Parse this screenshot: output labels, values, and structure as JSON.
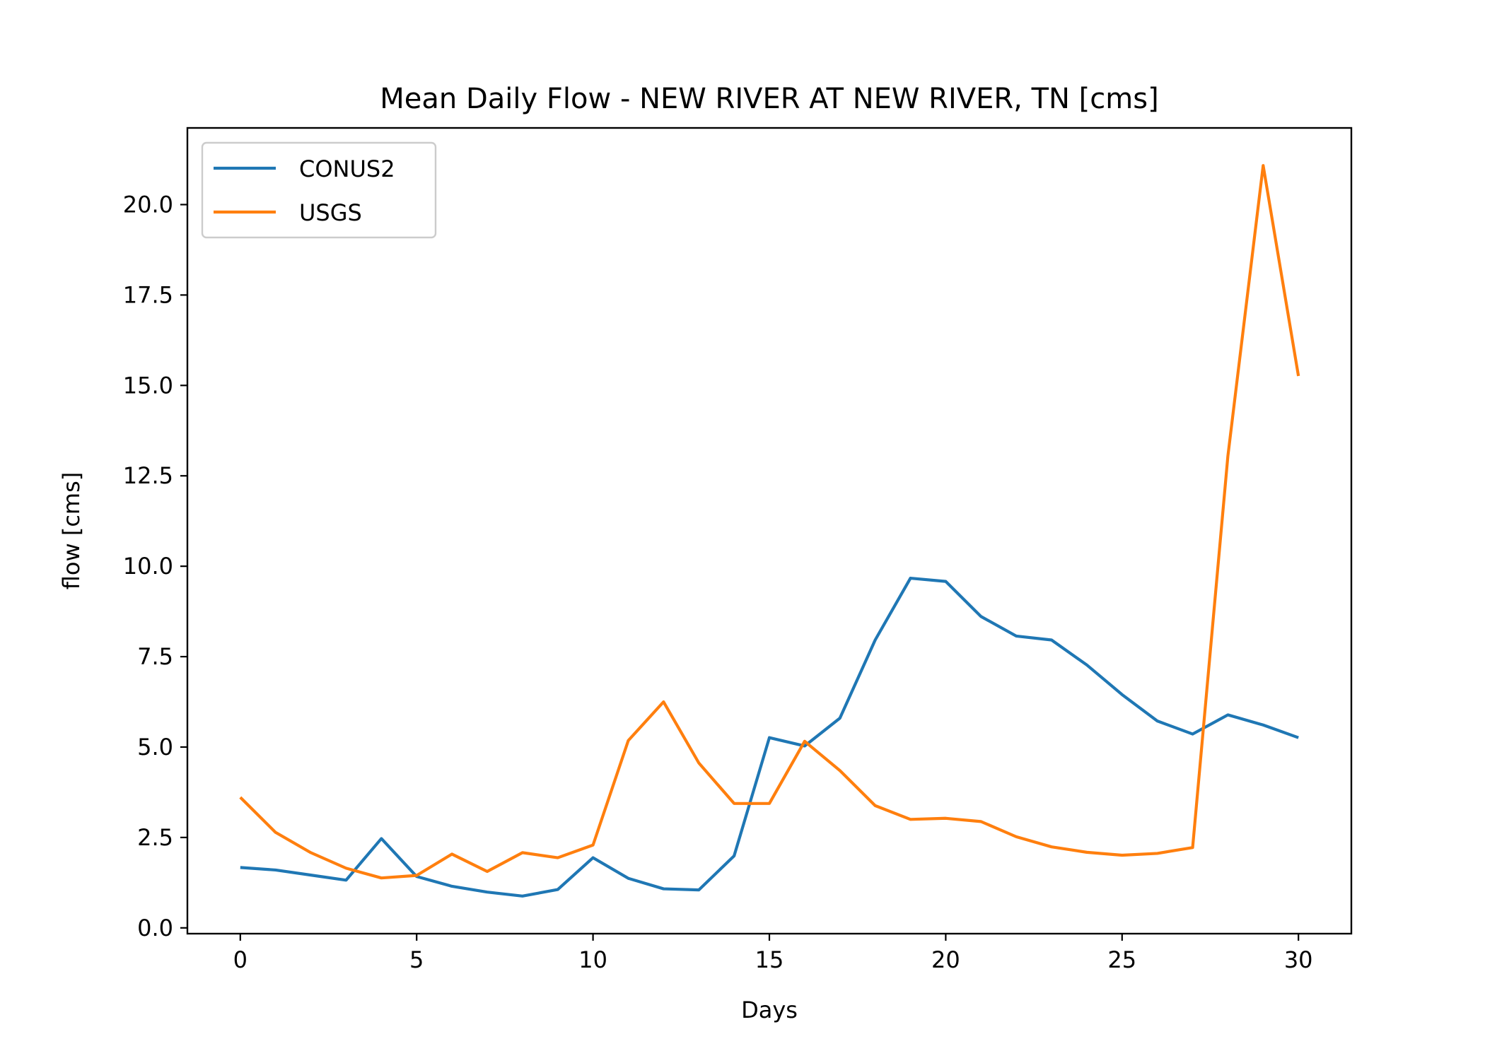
{
  "chart_data": {
    "type": "line",
    "title": "Mean Daily Flow - NEW RIVER AT NEW RIVER, TN [cms]",
    "xlabel": "Days",
    "ylabel": "flow [cms]",
    "xlim": [
      -1.5,
      31.5
    ],
    "ylim": [
      -0.16,
      22.12
    ],
    "xticks": [
      0,
      5,
      10,
      15,
      20,
      25,
      30
    ],
    "yticks": [
      0.0,
      2.5,
      5.0,
      7.5,
      10.0,
      12.5,
      15.0,
      17.5,
      20.0
    ],
    "xtick_labels": [
      "0",
      "5",
      "10",
      "15",
      "20",
      "25",
      "30"
    ],
    "ytick_labels": [
      "0.0",
      "2.5",
      "5.0",
      "7.5",
      "10.0",
      "12.5",
      "15.0",
      "17.5",
      "20.0"
    ],
    "grid": false,
    "legend_position": "upper-left",
    "x": [
      0,
      1,
      2,
      3,
      4,
      5,
      6,
      7,
      8,
      9,
      10,
      11,
      12,
      13,
      14,
      15,
      16,
      17,
      18,
      19,
      20,
      21,
      22,
      23,
      24,
      25,
      26,
      27,
      28,
      29,
      30
    ],
    "series": [
      {
        "name": "CONUS2",
        "color": "#1f77b4",
        "values": [
          1.67,
          1.6,
          1.46,
          1.32,
          2.47,
          1.42,
          1.15,
          0.99,
          0.88,
          1.06,
          1.94,
          1.37,
          1.08,
          1.05,
          1.99,
          5.26,
          5.03,
          5.8,
          7.96,
          9.67,
          9.58,
          8.61,
          8.07,
          7.96,
          7.27,
          6.45,
          5.72,
          5.36,
          5.89,
          5.61,
          5.26
        ]
      },
      {
        "name": "USGS",
        "color": "#ff7f0e",
        "values": [
          3.61,
          2.64,
          2.08,
          1.65,
          1.38,
          1.45,
          2.04,
          1.56,
          2.08,
          1.94,
          2.29,
          5.18,
          6.25,
          4.56,
          3.44,
          3.44,
          5.16,
          4.35,
          3.38,
          3.0,
          3.03,
          2.94,
          2.52,
          2.24,
          2.09,
          2.01,
          2.06,
          2.22,
          13.05,
          21.08,
          15.26
        ]
      }
    ]
  }
}
